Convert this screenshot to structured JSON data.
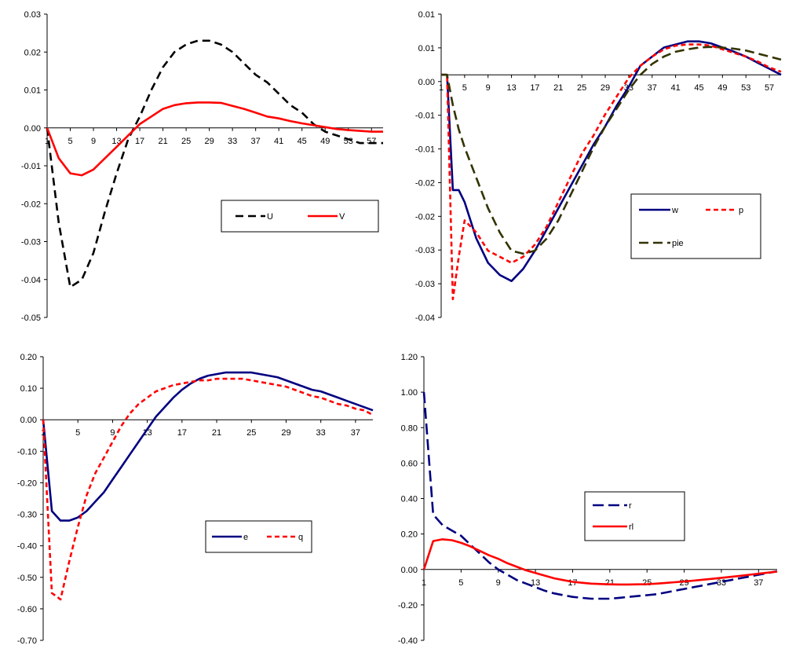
{
  "chart_data": [
    {
      "type": "line",
      "grid": false,
      "legend": "middle-right",
      "ylim": [
        -0.05,
        0.03
      ],
      "y_ticks": [
        "0.03",
        "0.02",
        "0.01",
        "0.00",
        "-0.01",
        "-0.02",
        "-0.03",
        "-0.04",
        "-0.05"
      ],
      "x_ticks": [
        "1",
        "5",
        "9",
        "13",
        "17",
        "21",
        "25",
        "29",
        "33",
        "37",
        "41",
        "45",
        "49",
        "53",
        "57"
      ],
      "x": [
        1,
        3,
        5,
        7,
        9,
        11,
        13,
        15,
        17,
        19,
        21,
        23,
        25,
        27,
        29,
        31,
        33,
        35,
        37,
        39,
        41,
        43,
        45,
        47,
        49,
        51,
        53,
        55,
        57,
        59
      ],
      "series": [
        {
          "name": "U",
          "color": "#000000",
          "dash": "10,6",
          "values": [
            0.0,
            -0.025,
            -0.042,
            -0.04,
            -0.033,
            -0.022,
            -0.012,
            -0.003,
            0.003,
            0.01,
            0.016,
            0.02,
            0.022,
            0.023,
            0.023,
            0.022,
            0.02,
            0.017,
            0.014,
            0.012,
            0.009,
            0.006,
            0.004,
            0.001,
            -0.001,
            -0.002,
            -0.003,
            -0.004,
            -0.004,
            -0.004
          ]
        },
        {
          "name": "V",
          "color": "#ff0000",
          "dash": "",
          "values": [
            0.0,
            -0.008,
            -0.012,
            -0.0125,
            -0.011,
            -0.008,
            -0.005,
            -0.002,
            0.001,
            0.003,
            0.005,
            0.006,
            0.0065,
            0.0067,
            0.0067,
            0.0066,
            0.0058,
            0.005,
            0.004,
            0.003,
            0.0025,
            0.0018,
            0.0012,
            0.0007,
            0.0002,
            -0.0003,
            -0.0006,
            -0.0008,
            -0.001,
            -0.001
          ]
        }
      ]
    },
    {
      "type": "line",
      "grid": false,
      "legend": "middle-right",
      "ylim": [
        -0.04,
        0.01
      ],
      "y_ticks": [
        "0.01",
        "0.01",
        "0.00",
        "-0.01",
        "-0.01",
        "-0.02",
        "-0.02",
        "-0.03",
        "-0.03",
        "-0.04"
      ],
      "x_ticks": [
        "1",
        "5",
        "9",
        "13",
        "17",
        "21",
        "25",
        "29",
        "33",
        "37",
        "41",
        "45",
        "49",
        "53",
        "57"
      ],
      "x": [
        1,
        2,
        3,
        4,
        5,
        7,
        9,
        11,
        13,
        15,
        17,
        19,
        21,
        23,
        25,
        27,
        29,
        31,
        33,
        35,
        37,
        39,
        41,
        43,
        45,
        47,
        49,
        51,
        53,
        55,
        57,
        59
      ],
      "series": [
        {
          "name": "w",
          "color": "#000080",
          "dash": "",
          "values": [
            0.0,
            0.0,
            -0.019,
            -0.019,
            -0.021,
            -0.027,
            -0.031,
            -0.033,
            -0.034,
            -0.032,
            -0.029,
            -0.0255,
            -0.022,
            -0.0185,
            -0.015,
            -0.0115,
            -0.0085,
            -0.005,
            -0.002,
            0.0015,
            0.003,
            0.0045,
            0.005,
            0.0055,
            0.0055,
            0.0052,
            0.0045,
            0.0038,
            0.003,
            0.002,
            0.001,
            0.0
          ]
        },
        {
          "name": "p",
          "color": "#ff0000",
          "dash": "6,4",
          "values": [
            0.0,
            0.0,
            -0.037,
            -0.03,
            -0.024,
            -0.026,
            -0.029,
            -0.03,
            -0.031,
            -0.03,
            -0.028,
            -0.025,
            -0.021,
            -0.017,
            -0.013,
            -0.01,
            -0.0065,
            -0.0035,
            -0.0005,
            0.0015,
            0.003,
            0.0042,
            0.0048,
            0.005,
            0.005,
            0.0048,
            0.0042,
            0.0036,
            0.003,
            0.0022,
            0.0012,
            0.0005
          ]
        },
        {
          "name": "pie",
          "color": "#333300",
          "dash": "12,6",
          "values": [
            0.0,
            0.0,
            -0.005,
            -0.009,
            -0.012,
            -0.017,
            -0.022,
            -0.026,
            -0.029,
            -0.0295,
            -0.029,
            -0.027,
            -0.024,
            -0.02,
            -0.016,
            -0.012,
            -0.0085,
            -0.0055,
            -0.0025,
            0.0,
            0.0018,
            0.003,
            0.0038,
            0.0042,
            0.0045,
            0.0046,
            0.0045,
            0.0043,
            0.004,
            0.0035,
            0.003,
            0.0025
          ]
        }
      ]
    },
    {
      "type": "line",
      "grid": false,
      "legend": "bottom-right",
      "ylim": [
        -0.7,
        0.2
      ],
      "y_ticks": [
        "0.20",
        "0.10",
        "0.00",
        "-0.10",
        "-0.20",
        "-0.30",
        "-0.40",
        "-0.50",
        "-0.60",
        "-0.70"
      ],
      "x_ticks": [
        "1",
        "5",
        "9",
        "13",
        "17",
        "21",
        "25",
        "29",
        "33",
        "37"
      ],
      "x": [
        1,
        2,
        3,
        4,
        5,
        6,
        7,
        8,
        9,
        10,
        11,
        12,
        13,
        14,
        15,
        16,
        17,
        18,
        19,
        20,
        21,
        22,
        23,
        24,
        25,
        26,
        27,
        28,
        29,
        30,
        31,
        32,
        33,
        34,
        35,
        36,
        37,
        38,
        39
      ],
      "series": [
        {
          "name": "e",
          "color": "#000080",
          "dash": "",
          "values": [
            0.0,
            -0.29,
            -0.32,
            -0.32,
            -0.31,
            -0.29,
            -0.26,
            -0.23,
            -0.19,
            -0.15,
            -0.11,
            -0.07,
            -0.03,
            0.01,
            0.04,
            0.07,
            0.095,
            0.115,
            0.13,
            0.14,
            0.145,
            0.15,
            0.15,
            0.15,
            0.15,
            0.145,
            0.14,
            0.135,
            0.125,
            0.115,
            0.105,
            0.095,
            0.09,
            0.08,
            0.07,
            0.06,
            0.05,
            0.04,
            0.03
          ]
        },
        {
          "name": "q",
          "color": "#ff0000",
          "dash": "6,4",
          "values": [
            0.0,
            -0.55,
            -0.57,
            -0.45,
            -0.34,
            -0.24,
            -0.17,
            -0.12,
            -0.07,
            -0.02,
            0.02,
            0.05,
            0.07,
            0.09,
            0.1,
            0.11,
            0.115,
            0.12,
            0.125,
            0.125,
            0.13,
            0.13,
            0.13,
            0.13,
            0.125,
            0.12,
            0.115,
            0.11,
            0.105,
            0.095,
            0.085,
            0.075,
            0.07,
            0.06,
            0.05,
            0.045,
            0.035,
            0.03,
            0.015
          ]
        }
      ]
    },
    {
      "type": "line",
      "grid": false,
      "legend": "middle-right",
      "ylim": [
        -0.4,
        1.2
      ],
      "y_ticks": [
        "1.20",
        "1.00",
        "0.80",
        "0.60",
        "0.40",
        "0.20",
        "0.00",
        "-0.20",
        "-0.40"
      ],
      "x_ticks": [
        "1",
        "5",
        "9",
        "13",
        "17",
        "21",
        "25",
        "29",
        "33",
        "37"
      ],
      "x": [
        1,
        2,
        3,
        4,
        5,
        6,
        7,
        8,
        9,
        10,
        11,
        12,
        13,
        14,
        15,
        16,
        17,
        18,
        19,
        20,
        21,
        22,
        23,
        24,
        25,
        26,
        27,
        28,
        29,
        30,
        31,
        32,
        33,
        34,
        35,
        36,
        37,
        38,
        39
      ],
      "series": [
        {
          "name": "r",
          "color": "#000080",
          "dash": "14,6",
          "values": [
            1.0,
            0.31,
            0.25,
            0.22,
            0.19,
            0.14,
            0.09,
            0.04,
            0.0,
            -0.03,
            -0.06,
            -0.08,
            -0.1,
            -0.12,
            -0.135,
            -0.145,
            -0.155,
            -0.16,
            -0.165,
            -0.165,
            -0.165,
            -0.16,
            -0.155,
            -0.15,
            -0.145,
            -0.14,
            -0.13,
            -0.12,
            -0.11,
            -0.1,
            -0.09,
            -0.08,
            -0.07,
            -0.06,
            -0.05,
            -0.04,
            -0.03,
            -0.02,
            -0.01
          ]
        },
        {
          "name": "rl",
          "color": "#ff0000",
          "dash": "",
          "values": [
            0.0,
            0.16,
            0.17,
            0.165,
            0.15,
            0.13,
            0.105,
            0.08,
            0.06,
            0.035,
            0.015,
            -0.005,
            -0.02,
            -0.035,
            -0.05,
            -0.06,
            -0.07,
            -0.075,
            -0.08,
            -0.082,
            -0.084,
            -0.085,
            -0.085,
            -0.084,
            -0.083,
            -0.08,
            -0.076,
            -0.072,
            -0.068,
            -0.063,
            -0.058,
            -0.053,
            -0.047,
            -0.042,
            -0.036,
            -0.03,
            -0.024,
            -0.018,
            -0.012
          ]
        }
      ]
    }
  ]
}
